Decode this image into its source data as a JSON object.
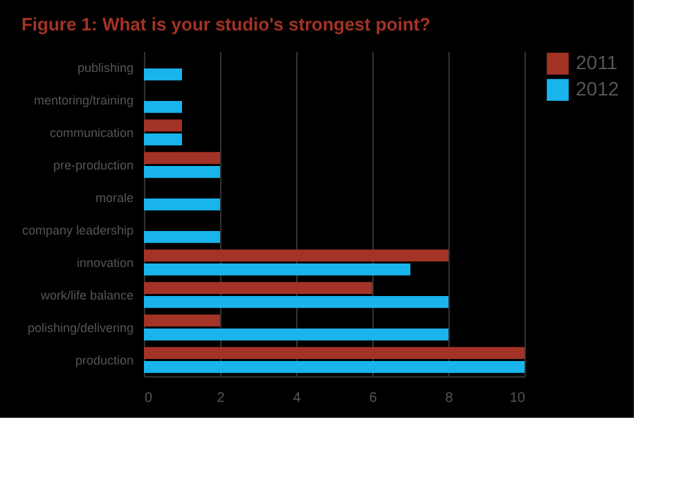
{
  "chart_data": {
    "type": "bar",
    "orientation": "horizontal",
    "title": "Figure 1: What is your studio's strongest point?",
    "categories": [
      "publishing",
      "mentoring/training",
      "communication",
      "pre-production",
      "morale",
      "company leadership",
      "innovation",
      "work/life balance",
      "polishing/delivering",
      "production"
    ],
    "series": [
      {
        "name": "2011",
        "color": "#a33326",
        "values": [
          null,
          null,
          1,
          2,
          null,
          null,
          8,
          6,
          2,
          10
        ]
      },
      {
        "name": "2012",
        "color": "#1ab4ec",
        "values": [
          1,
          1,
          1,
          2,
          2,
          2,
          7,
          8,
          8,
          10
        ]
      }
    ],
    "xlim": [
      0,
      10
    ],
    "xticks": [
      0,
      2,
      4,
      6,
      8,
      10
    ],
    "grid": "x",
    "legend": "right"
  }
}
